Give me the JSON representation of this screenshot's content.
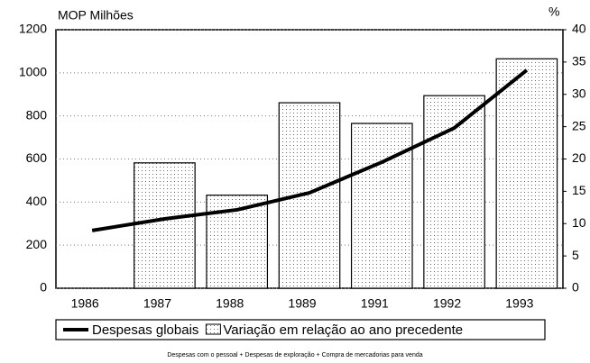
{
  "chart_data": {
    "type": "bar_line",
    "y_axis_label": "MOP Milhões",
    "y2_axis_label": "%",
    "categories": [
      "1986",
      "1987",
      "1988",
      "1989",
      "1991",
      "1992",
      "1993"
    ],
    "series": [
      {
        "name": "Despesas globais",
        "type": "line",
        "color": "#000000",
        "axis": "y",
        "values": [
          268,
          322,
          364,
          443,
          585,
          744,
          1012
        ]
      },
      {
        "name": "Variação em relação ao ano precedente",
        "type": "bar",
        "color": "#ffffff",
        "axis": "y2",
        "values": [
          null,
          19.4,
          14.4,
          28.7,
          25.5,
          29.8,
          35.5
        ]
      }
    ],
    "ylim": [
      0,
      1200
    ],
    "yticks": [
      0,
      200,
      400,
      600,
      800,
      1000,
      1200
    ],
    "y2lim": [
      0,
      40
    ],
    "y2ticks": [
      0,
      5,
      10,
      15,
      20,
      25,
      30,
      35,
      40
    ],
    "grid": true,
    "legend": "bottom",
    "footnote": "Despesas com o pessoal + Despesas de exploração + Compra de mercadorias para venda"
  }
}
